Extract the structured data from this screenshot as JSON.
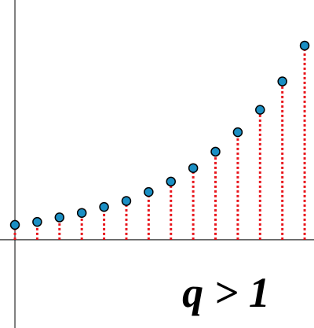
{
  "chart_data": {
    "type": "stem",
    "annotation": "q > 1",
    "x": [
      0,
      1,
      2,
      3,
      4,
      5,
      6,
      7,
      8,
      9,
      10,
      11,
      12,
      13
    ],
    "values": [
      1,
      1.2,
      1.5,
      1.8,
      2.2,
      2.6,
      3.2,
      3.9,
      4.8,
      5.9,
      7.2,
      8.7,
      10.6,
      13
    ],
    "xlim": [
      -0.67,
      13.42
    ],
    "ylim": [
      -5.9,
      16.05
    ],
    "color": "#1b8fc4",
    "stem_color": "#e8141b"
  }
}
